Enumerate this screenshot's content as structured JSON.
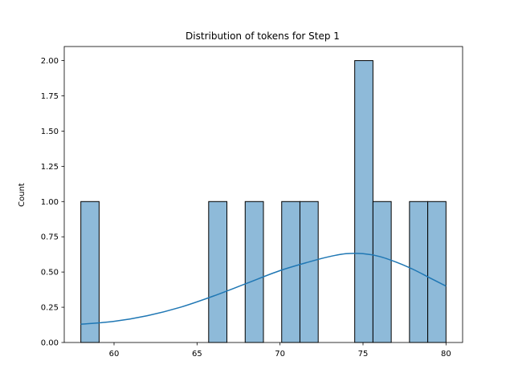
{
  "chart_data": {
    "type": "bar",
    "subtype": "histogram-with-kde",
    "title": "Distribution of tokens for Step 1",
    "xlabel": "",
    "ylabel": "Count",
    "xlim": [
      57.0,
      81.0
    ],
    "ylim": [
      0,
      2.1
    ],
    "xticks": [
      60,
      65,
      70,
      75,
      80
    ],
    "yticks": [
      "0.00",
      "0.25",
      "0.50",
      "0.75",
      "1.00",
      "1.25",
      "1.50",
      "1.75",
      "2.00"
    ],
    "bins": [
      {
        "x0": 58.0,
        "x1": 59.1,
        "count": 1
      },
      {
        "x0": 59.1,
        "x1": 60.2,
        "count": 0
      },
      {
        "x0": 60.2,
        "x1": 61.3,
        "count": 0
      },
      {
        "x0": 61.3,
        "x1": 62.4,
        "count": 0
      },
      {
        "x0": 62.4,
        "x1": 63.5,
        "count": 0
      },
      {
        "x0": 63.5,
        "x1": 64.6,
        "count": 0
      },
      {
        "x0": 64.6,
        "x1": 65.7,
        "count": 0
      },
      {
        "x0": 65.7,
        "x1": 66.8,
        "count": 1
      },
      {
        "x0": 66.8,
        "x1": 67.9,
        "count": 0
      },
      {
        "x0": 67.9,
        "x1": 69.0,
        "count": 1
      },
      {
        "x0": 69.0,
        "x1": 70.1,
        "count": 0
      },
      {
        "x0": 70.1,
        "x1": 71.2,
        "count": 1
      },
      {
        "x0": 71.2,
        "x1": 72.3,
        "count": 1
      },
      {
        "x0": 72.3,
        "x1": 73.4,
        "count": 0
      },
      {
        "x0": 73.4,
        "x1": 74.5,
        "count": 0
      },
      {
        "x0": 74.5,
        "x1": 75.6,
        "count": 2
      },
      {
        "x0": 75.6,
        "x1": 76.7,
        "count": 1
      },
      {
        "x0": 76.7,
        "x1": 77.8,
        "count": 0
      },
      {
        "x0": 77.8,
        "x1": 78.9,
        "count": 1
      },
      {
        "x0": 78.9,
        "x1": 80.0,
        "count": 1
      }
    ],
    "kde": {
      "x": [
        58,
        60,
        62,
        64,
        66,
        68,
        70,
        72,
        73,
        74,
        75,
        76,
        77,
        78,
        79,
        80
      ],
      "y": [
        0.13,
        0.15,
        0.19,
        0.25,
        0.33,
        0.42,
        0.51,
        0.58,
        0.61,
        0.63,
        0.63,
        0.61,
        0.57,
        0.52,
        0.46,
        0.4
      ]
    },
    "grid": false,
    "colors": {
      "bar_fill": "#8ebad9",
      "bar_edge": "#000000",
      "kde_line": "#1f77b4"
    }
  }
}
